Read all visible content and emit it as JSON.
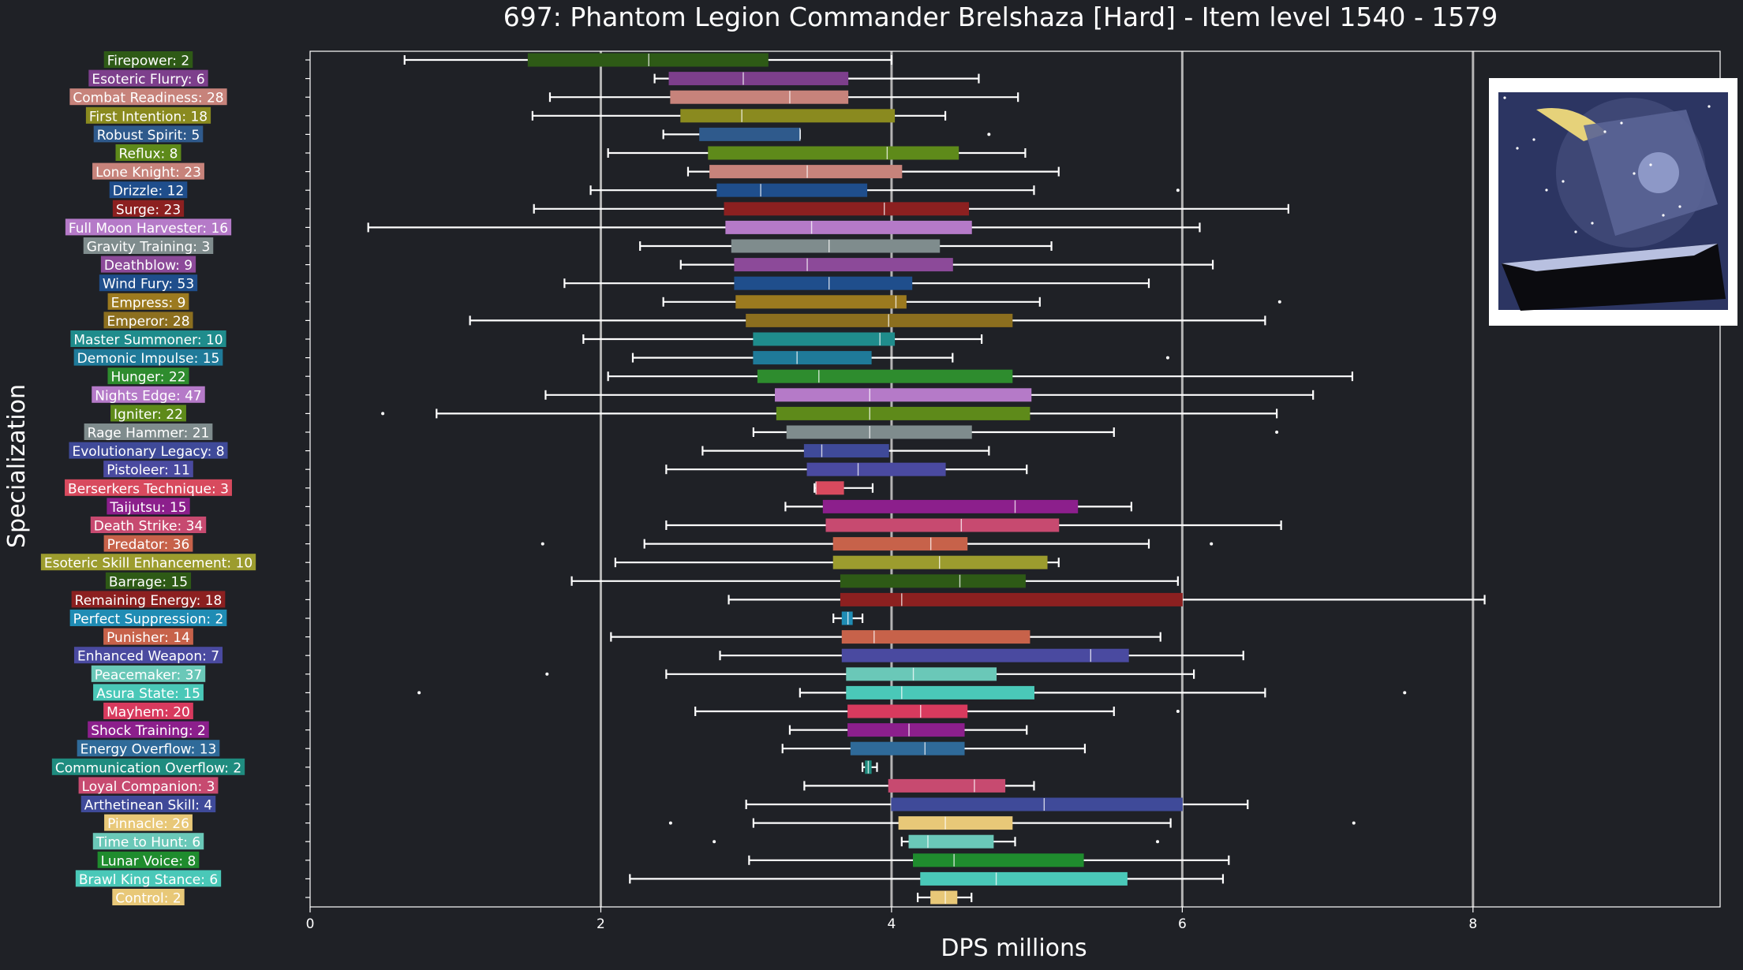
{
  "chart_data": {
    "type": "box",
    "title": "697: Phantom Legion Commander Brelshaza [Hard] - Item level 1540 - 1579",
    "xlabel": "DPS millions",
    "ylabel": "Specialization",
    "xlim": [
      0,
      9.7
    ],
    "xticks": [
      0,
      2,
      4,
      6,
      8
    ],
    "grid": "vertical",
    "legend": "none",
    "colors": {
      "background": "#1f2126",
      "axis": "#ffffff",
      "grid": "#b4b4b4",
      "text": "#ffffff"
    },
    "image_icon": "boss-portrait",
    "series": [
      {
        "label": "Firepower: 2",
        "color": "#2e5a16",
        "whisker_low": 0.65,
        "q1": 1.5,
        "median": 2.33,
        "q3": 3.15,
        "whisker_high": 4.0,
        "outliers": []
      },
      {
        "label": "Esoteric Flurry: 6",
        "color": "#7d3f8c",
        "whisker_low": 2.37,
        "q1": 2.47,
        "median": 2.98,
        "q3": 3.7,
        "whisker_high": 4.6,
        "outliers": []
      },
      {
        "label": "Combat Readiness: 28",
        "color": "#c7837b",
        "whisker_low": 1.65,
        "q1": 2.48,
        "median": 3.3,
        "q3": 3.7,
        "whisker_high": 4.87,
        "outliers": []
      },
      {
        "label": "First Intention: 18",
        "color": "#8a8a1f",
        "whisker_low": 1.53,
        "q1": 2.55,
        "median": 2.97,
        "q3": 4.02,
        "whisker_high": 4.37,
        "outliers": []
      },
      {
        "label": "Robust Spirit: 5",
        "color": "#2f5a8c",
        "whisker_low": 2.43,
        "q1": 2.68,
        "median": 3.37,
        "q3": 3.37,
        "whisker_high": 3.37,
        "outliers": [
          4.67
        ]
      },
      {
        "label": "Reflux: 8",
        "color": "#5e8a1a",
        "whisker_low": 2.05,
        "q1": 2.74,
        "median": 3.97,
        "q3": 4.46,
        "whisker_high": 4.92,
        "outliers": []
      },
      {
        "label": "Lone Knight: 23",
        "color": "#c7837b",
        "whisker_low": 2.6,
        "q1": 2.75,
        "median": 3.42,
        "q3": 4.07,
        "whisker_high": 5.15,
        "outliers": []
      },
      {
        "label": "Drizzle: 12",
        "color": "#1f4e8c",
        "whisker_low": 1.93,
        "q1": 2.8,
        "median": 3.1,
        "q3": 3.83,
        "whisker_high": 4.98,
        "outliers": [
          5.97
        ]
      },
      {
        "label": "Surge: 23",
        "color": "#8c2020",
        "whisker_low": 1.54,
        "q1": 2.85,
        "median": 3.95,
        "q3": 4.53,
        "whisker_high": 6.73,
        "outliers": []
      },
      {
        "label": "Full Moon Harvester: 16",
        "color": "#b57ac8",
        "whisker_low": 0.4,
        "q1": 2.86,
        "median": 3.45,
        "q3": 4.55,
        "whisker_high": 6.12,
        "outliers": []
      },
      {
        "label": "Gravity Training: 3",
        "color": "#7f8c8d",
        "whisker_low": 2.27,
        "q1": 2.9,
        "median": 3.57,
        "q3": 4.33,
        "whisker_high": 5.1,
        "outliers": []
      },
      {
        "label": "Deathblow: 9",
        "color": "#8c4a99",
        "whisker_low": 2.55,
        "q1": 2.92,
        "median": 3.42,
        "q3": 4.42,
        "whisker_high": 6.21,
        "outliers": []
      },
      {
        "label": "Wind Fury: 53",
        "color": "#1f4e8c",
        "whisker_low": 1.75,
        "q1": 2.92,
        "median": 3.57,
        "q3": 4.14,
        "whisker_high": 5.77,
        "outliers": []
      },
      {
        "label": "Empress: 9",
        "color": "#9c7a1f",
        "whisker_low": 2.43,
        "q1": 2.93,
        "median": 4.03,
        "q3": 4.1,
        "whisker_high": 5.02,
        "outliers": [
          6.67
        ]
      },
      {
        "label": "Emperor: 28",
        "color": "#8c6f1f",
        "whisker_low": 1.1,
        "q1": 3.0,
        "median": 3.98,
        "q3": 4.83,
        "whisker_high": 6.57,
        "outliers": []
      },
      {
        "label": "Master Summoner: 10",
        "color": "#1f8c8c",
        "whisker_low": 1.88,
        "q1": 3.05,
        "median": 3.92,
        "q3": 4.02,
        "whisker_high": 4.62,
        "outliers": []
      },
      {
        "label": "Demonic Impulse: 15",
        "color": "#1f7a99",
        "whisker_low": 2.22,
        "q1": 3.05,
        "median": 3.35,
        "q3": 3.86,
        "whisker_high": 4.42,
        "outliers": [
          5.9
        ]
      },
      {
        "label": "Hunger: 22",
        "color": "#2e8c2e",
        "whisker_low": 2.05,
        "q1": 3.08,
        "median": 3.5,
        "q3": 4.83,
        "whisker_high": 7.17,
        "outliers": []
      },
      {
        "label": "Nights Edge: 47",
        "color": "#b57ac8",
        "whisker_low": 1.62,
        "q1": 3.2,
        "median": 3.85,
        "q3": 4.96,
        "whisker_high": 6.9,
        "outliers": []
      },
      {
        "label": "Igniter: 22",
        "color": "#5e8a1a",
        "whisker_low": 0.87,
        "q1": 3.21,
        "median": 3.85,
        "q3": 4.95,
        "whisker_high": 6.65,
        "outliers": [
          0.5
        ]
      },
      {
        "label": "Rage Hammer: 21",
        "color": "#7f8c8d",
        "whisker_low": 3.05,
        "q1": 3.28,
        "median": 3.85,
        "q3": 4.55,
        "whisker_high": 5.53,
        "outliers": [
          6.65
        ]
      },
      {
        "label": "Evolutionary Legacy: 8",
        "color": "#3f4a99",
        "whisker_low": 2.7,
        "q1": 3.4,
        "median": 3.52,
        "q3": 3.98,
        "whisker_high": 4.67,
        "outliers": []
      },
      {
        "label": "Pistoleer: 11",
        "color": "#4a4aa0",
        "whisker_low": 2.45,
        "q1": 3.42,
        "median": 3.77,
        "q3": 4.37,
        "whisker_high": 4.93,
        "outliers": []
      },
      {
        "label": "Berserkers Technique: 3",
        "color": "#d84a5e",
        "whisker_low": 3.47,
        "q1": 3.48,
        "median": 3.48,
        "q3": 3.67,
        "whisker_high": 3.87,
        "outliers": []
      },
      {
        "label": "Taijutsu: 15",
        "color": "#8c1f8c",
        "whisker_low": 3.27,
        "q1": 3.53,
        "median": 4.85,
        "q3": 5.28,
        "whisker_high": 5.65,
        "outliers": []
      },
      {
        "label": "Death Strike: 34",
        "color": "#c74a70",
        "whisker_low": 2.45,
        "q1": 3.55,
        "median": 4.48,
        "q3": 5.15,
        "whisker_high": 6.68,
        "outliers": []
      },
      {
        "label": "Predator: 36",
        "color": "#c7624a",
        "whisker_low": 2.3,
        "q1": 3.6,
        "median": 4.27,
        "q3": 4.52,
        "whisker_high": 5.77,
        "outliers": [
          1.6,
          6.2
        ]
      },
      {
        "label": "Esoteric Skill Enhancement: 10",
        "color": "#9c9c2e",
        "whisker_low": 2.1,
        "q1": 3.6,
        "median": 4.33,
        "q3": 5.07,
        "whisker_high": 5.15,
        "outliers": []
      },
      {
        "label": "Barrage: 15",
        "color": "#2e5a16",
        "whisker_low": 1.8,
        "q1": 3.65,
        "median": 4.47,
        "q3": 4.92,
        "whisker_high": 5.97,
        "outliers": []
      },
      {
        "label": "Remaining Energy: 18",
        "color": "#8c2020",
        "whisker_low": 2.88,
        "q1": 3.65,
        "median": 4.07,
        "q3": 6.0,
        "whisker_high": 8.08,
        "outliers": []
      },
      {
        "label": "Perfect Suppression: 2",
        "color": "#1f8cb4",
        "whisker_low": 3.6,
        "q1": 3.66,
        "median": 3.7,
        "q3": 3.73,
        "whisker_high": 3.8,
        "outliers": []
      },
      {
        "label": "Punisher: 14",
        "color": "#c7624a",
        "whisker_low": 2.07,
        "q1": 3.66,
        "median": 3.88,
        "q3": 4.95,
        "whisker_high": 5.85,
        "outliers": []
      },
      {
        "label": "Enhanced Weapon: 7",
        "color": "#4a4aa0",
        "whisker_low": 2.82,
        "q1": 3.66,
        "median": 5.37,
        "q3": 5.63,
        "whisker_high": 6.42,
        "outliers": []
      },
      {
        "label": "Peacemaker: 37",
        "color": "#6ac8b8",
        "whisker_low": 2.45,
        "q1": 3.69,
        "median": 4.15,
        "q3": 4.72,
        "whisker_high": 6.08,
        "outliers": [
          1.63
        ]
      },
      {
        "label": "Asura State: 15",
        "color": "#4ac8b8",
        "whisker_low": 3.37,
        "q1": 3.69,
        "median": 4.07,
        "q3": 4.98,
        "whisker_high": 6.57,
        "outliers": [
          0.75,
          7.53
        ]
      },
      {
        "label": "Mayhem: 20",
        "color": "#d83a5e",
        "whisker_low": 2.65,
        "q1": 3.7,
        "median": 4.2,
        "q3": 4.52,
        "whisker_high": 5.53,
        "outliers": [
          5.97
        ]
      },
      {
        "label": "Shock Training: 2",
        "color": "#8c1f8c",
        "whisker_low": 3.3,
        "q1": 3.7,
        "median": 4.12,
        "q3": 4.5,
        "whisker_high": 4.93,
        "outliers": []
      },
      {
        "label": "Energy Overflow: 13",
        "color": "#2f6a99",
        "whisker_low": 3.25,
        "q1": 3.72,
        "median": 4.23,
        "q3": 4.5,
        "whisker_high": 5.33,
        "outliers": []
      },
      {
        "label": "Communication Overflow: 2",
        "color": "#1f8c7f",
        "whisker_low": 3.8,
        "q1": 3.82,
        "median": 3.84,
        "q3": 3.86,
        "whisker_high": 3.9,
        "outliers": []
      },
      {
        "label": "Loyal Companion: 3",
        "color": "#c74a70",
        "whisker_low": 3.4,
        "q1": 3.98,
        "median": 4.57,
        "q3": 4.78,
        "whisker_high": 4.98,
        "outliers": []
      },
      {
        "label": "Arthetinean Skill: 4",
        "color": "#3f4a99",
        "whisker_low": 3.0,
        "q1": 4.0,
        "median": 5.05,
        "q3": 6.0,
        "whisker_high": 6.45,
        "outliers": []
      },
      {
        "label": "Pinnacle: 26",
        "color": "#e8c878",
        "whisker_low": 3.05,
        "q1": 4.05,
        "median": 4.37,
        "q3": 4.83,
        "whisker_high": 5.92,
        "outliers": [
          2.48,
          7.18
        ]
      },
      {
        "label": "Time to Hunt: 6",
        "color": "#6ac8b8",
        "whisker_low": 4.07,
        "q1": 4.12,
        "median": 4.25,
        "q3": 4.7,
        "whisker_high": 4.85,
        "outliers": [
          2.78,
          5.83
        ]
      },
      {
        "label": "Lunar Voice: 8",
        "color": "#1f8c2e",
        "whisker_low": 3.02,
        "q1": 4.15,
        "median": 4.43,
        "q3": 5.32,
        "whisker_high": 6.32,
        "outliers": []
      },
      {
        "label": "Brawl King Stance: 6",
        "color": "#4ac8b8",
        "whisker_low": 2.2,
        "q1": 4.2,
        "median": 4.72,
        "q3": 5.62,
        "whisker_high": 6.28,
        "outliers": []
      },
      {
        "label": "Control: 2",
        "color": "#e8c878",
        "whisker_low": 4.18,
        "q1": 4.27,
        "median": 4.37,
        "q3": 4.45,
        "whisker_high": 4.55,
        "outliers": []
      }
    ]
  }
}
